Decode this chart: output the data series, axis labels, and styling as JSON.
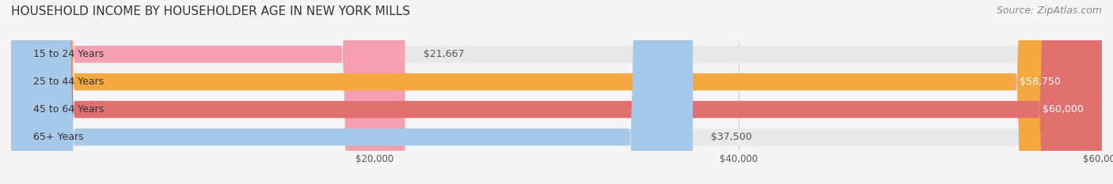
{
  "title": "HOUSEHOLD INCOME BY HOUSEHOLDER AGE IN NEW YORK MILLS",
  "source": "Source: ZipAtlas.com",
  "categories": [
    "15 to 24 Years",
    "25 to 44 Years",
    "45 to 64 Years",
    "65+ Years"
  ],
  "values": [
    21667,
    58750,
    60000,
    37500
  ],
  "bar_colors": [
    "#f4a0b0",
    "#f5a742",
    "#e07070",
    "#a8c8e8"
  ],
  "label_colors": [
    "#555555",
    "#ffffff",
    "#ffffff",
    "#555555"
  ],
  "value_labels": [
    "$21,667",
    "$58,750",
    "$60,000",
    "$37,500"
  ],
  "xlim": [
    0,
    60000
  ],
  "xticks": [
    20000,
    40000,
    60000
  ],
  "xtick_labels": [
    "$20,000",
    "$40,000",
    "$60,000"
  ],
  "background_color": "#f5f5f5",
  "bar_background_color": "#e8e8e8",
  "title_fontsize": 11,
  "source_fontsize": 9,
  "label_fontsize": 9,
  "value_fontsize": 9,
  "tick_fontsize": 8.5
}
